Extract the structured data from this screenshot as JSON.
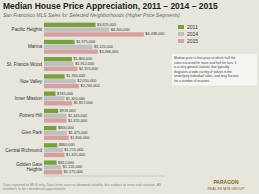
{
  "chart_data": {
    "type": "bar",
    "orientation": "horizontal",
    "title": "Median House Price Appreciation, 2011 – 2014 – 2015",
    "subtitle": "San Francisco MLS Sales for Selected Neighborhoods (Higher Price Segments)",
    "categories": [
      "Pacific Heights",
      "Marina",
      "St. Francis Wood",
      "Noe Valley",
      "Inner Mission",
      "Potrero Hill",
      "Glen Park",
      "Central Richmond",
      "Golden Gate\nHeights"
    ],
    "series": [
      {
        "name": "2011",
        "color": "#7a9e42",
        "values": [
          3325000,
          1975000,
          1800000,
          1330000,
          745000,
          918000,
          800000,
          860000,
          812000
        ],
        "value_labels": [
          "$3,325,000",
          "$1,975,000",
          "$1,800,000",
          "$1,330,000",
          "$745,000",
          "$918,000",
          "$800,000",
          "$860,000",
          "$812,000"
        ]
      },
      {
        "name": "2014",
        "color": "#c0c0c0",
        "values": [
          4200000,
          3120000,
          1912000,
          2050000,
          1320000,
          1445000,
          1475000,
          1215000,
          1120000
        ],
        "value_labels": [
          "$4,200,000",
          "$3,120,000",
          "$1,912,000",
          "$2,050,000",
          "$1,320,000",
          "$1,445,000",
          "$1,475,000",
          "$1,215,000",
          "$1,120,000"
        ]
      },
      {
        "name": "2015",
        "color": "#d4a0a0",
        "values": [
          6438000,
          3466000,
          2155000,
          2260000,
          1817000,
          1455000,
          1600000,
          1325000,
          1175000
        ],
        "value_labels": [
          "$6,438,000",
          "$3,466,000",
          "$2,155,000",
          "$2,260,000",
          "$1,817,000",
          "$1,455,000",
          "$1,600,000",
          "$1,325,000",
          "$1,175,000"
        ]
      }
    ],
    "xlim": [
      0,
      7800000
    ],
    "data_labels": true,
    "tick_labels": "y",
    "grid": false,
    "legend": "upper right",
    "annotations": [
      "Median price is that price at which half the\nsales occurred for more and half for less. It\nis a very general statistic that typically\ndisguises a wide variety of values in the\nunderlying individual sales, and may fluctate\nfor a number of reasons.",
      "Data reported to MLS only. Data from sources deemed reliable, but subject to error and revision. All numbers to be considered approximate.",
      "PARAGON",
      "REAL ESTATE GROUP"
    ]
  }
}
